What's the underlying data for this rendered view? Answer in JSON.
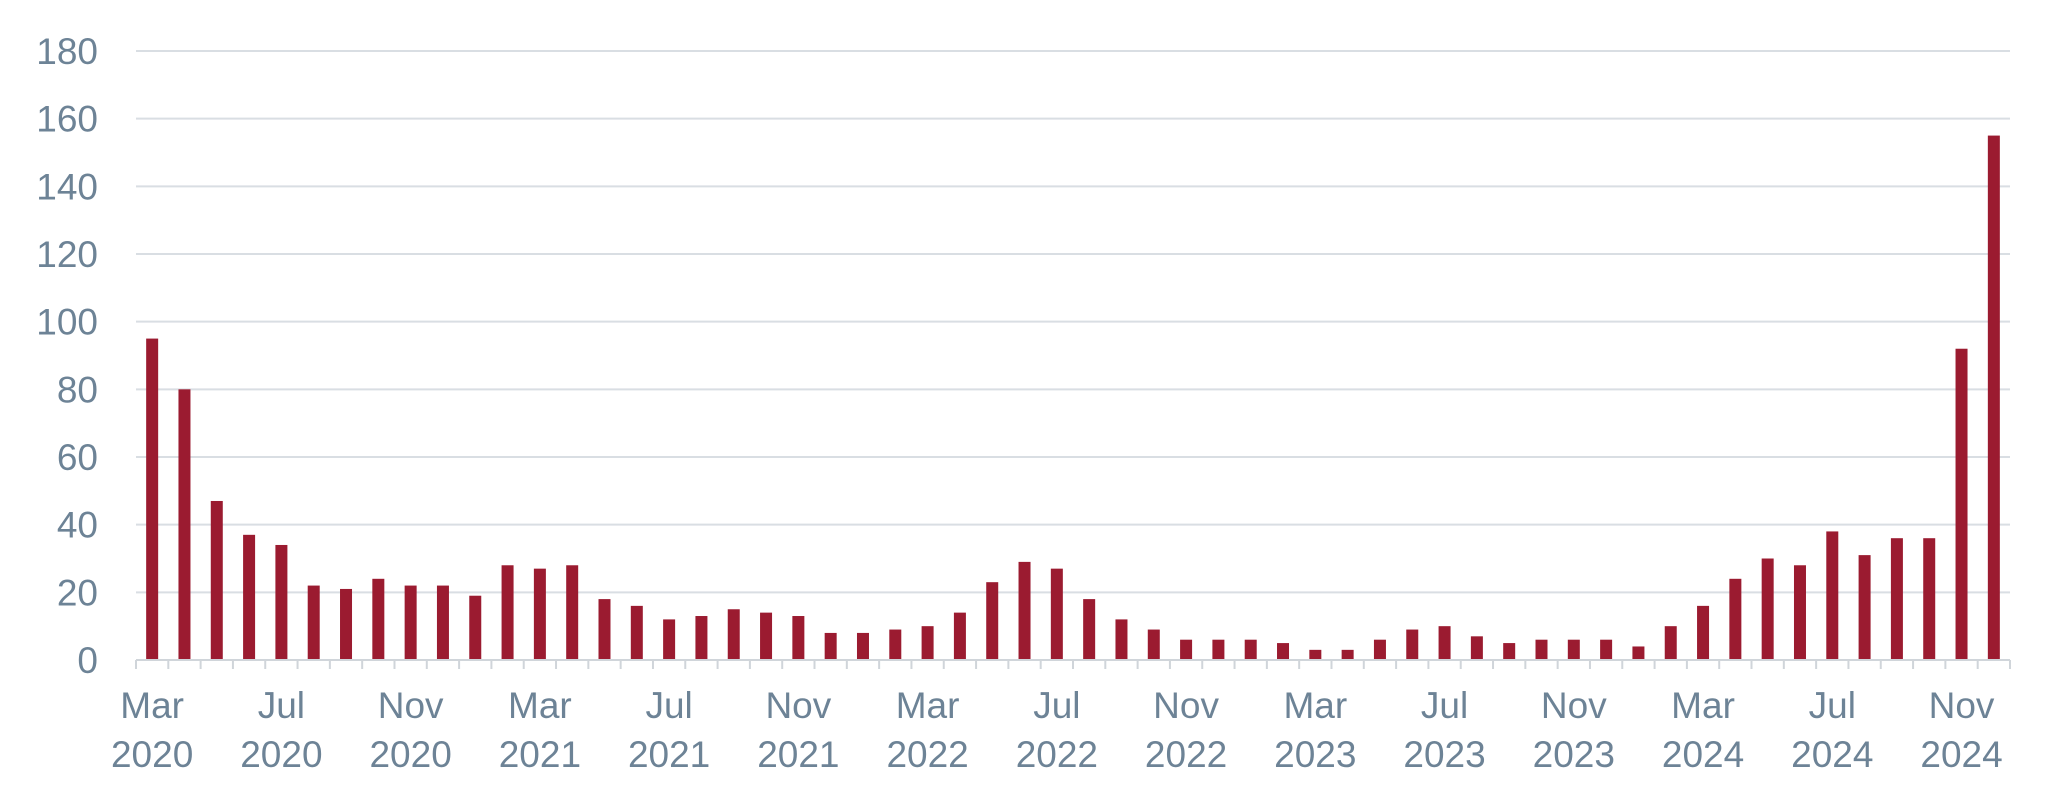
{
  "chart_data": {
    "type": "bar",
    "title": "",
    "xlabel": "",
    "ylabel": "",
    "ylim": [
      0,
      180
    ],
    "yticks": [
      "0",
      "20",
      "40",
      "60",
      "80",
      "100",
      "120",
      "140",
      "160",
      "180"
    ],
    "grid": true,
    "legend": "none",
    "bar_color": "#9b1b30",
    "categories": [
      "Mar 2020",
      "Apr 2020",
      "May 2020",
      "Jun 2020",
      "Jul 2020",
      "Aug 2020",
      "Sep 2020",
      "Oct 2020",
      "Nov 2020",
      "Dec 2020",
      "Jan 2021",
      "Feb 2021",
      "Mar 2021",
      "Apr 2021",
      "May 2021",
      "Jun 2021",
      "Jul 2021",
      "Aug 2021",
      "Sep 2021",
      "Oct 2021",
      "Nov 2021",
      "Dec 2021",
      "Jan 2022",
      "Feb 2022",
      "Mar 2022",
      "Apr 2022",
      "May 2022",
      "Jun 2022",
      "Jul 2022",
      "Aug 2022",
      "Sep 2022",
      "Oct 2022",
      "Nov 2022",
      "Dec 2022",
      "Jan 2023",
      "Feb 2023",
      "Mar 2023",
      "Apr 2023",
      "May 2023",
      "Jun 2023",
      "Jul 2023",
      "Aug 2023",
      "Sep 2023",
      "Oct 2023",
      "Nov 2023",
      "Dec 2023",
      "Jan 2024",
      "Feb 2024",
      "Mar 2024",
      "Apr 2024",
      "May 2024",
      "Jun 2024",
      "Jul 2024",
      "Aug 2024",
      "Sep 2024",
      "Oct 2024",
      "Nov 2024",
      "Dec 2024"
    ],
    "values": [
      95,
      80,
      47,
      37,
      34,
      22,
      21,
      24,
      22,
      22,
      19,
      28,
      27,
      28,
      18,
      16,
      12,
      13,
      15,
      14,
      13,
      8,
      8,
      9,
      10,
      14,
      23,
      29,
      27,
      18,
      12,
      9,
      6,
      6,
      6,
      5,
      3,
      3,
      6,
      9,
      10,
      7,
      5,
      6,
      6,
      6,
      4,
      10,
      16,
      24,
      30,
      28,
      38,
      31,
      36,
      36,
      92,
      155
    ],
    "x_tick_labels": [
      {
        "index": 0,
        "month": "Mar",
        "year": "2020"
      },
      {
        "index": 4,
        "month": "Jul",
        "year": "2020"
      },
      {
        "index": 8,
        "month": "Nov",
        "year": "2020"
      },
      {
        "index": 12,
        "month": "Mar",
        "year": "2021"
      },
      {
        "index": 16,
        "month": "Jul",
        "year": "2021"
      },
      {
        "index": 20,
        "month": "Nov",
        "year": "2021"
      },
      {
        "index": 24,
        "month": "Mar",
        "year": "2022"
      },
      {
        "index": 28,
        "month": "Jul",
        "year": "2022"
      },
      {
        "index": 32,
        "month": "Nov",
        "year": "2022"
      },
      {
        "index": 36,
        "month": "Mar",
        "year": "2023"
      },
      {
        "index": 40,
        "month": "Jul",
        "year": "2023"
      },
      {
        "index": 44,
        "month": "Nov",
        "year": "2023"
      },
      {
        "index": 48,
        "month": "Mar",
        "year": "2024"
      },
      {
        "index": 52,
        "month": "Jul",
        "year": "2024"
      },
      {
        "index": 56,
        "month": "Nov",
        "year": "2024"
      }
    ]
  }
}
